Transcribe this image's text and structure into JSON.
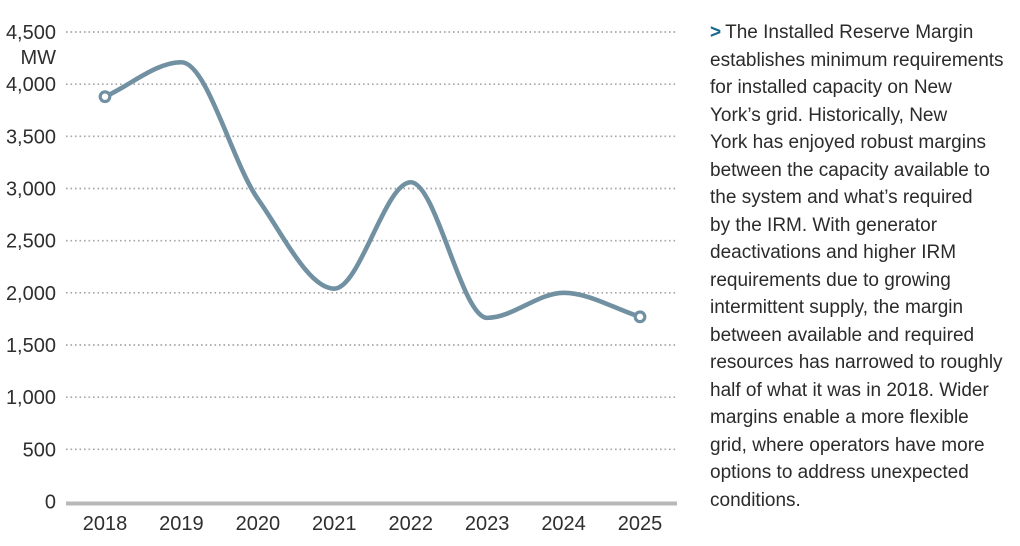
{
  "chart_data": {
    "type": "line",
    "title": "",
    "xlabel": "",
    "ylabel": "MW",
    "unit_label": "MW",
    "categories": [
      "2018",
      "2019",
      "2020",
      "2021",
      "2022",
      "2023",
      "2024",
      "2025"
    ],
    "series": [
      {
        "name": "Installed Reserve Margin (MW)",
        "values": [
          3880,
          4210,
          2900,
          2040,
          3060,
          1760,
          2000,
          1770
        ]
      }
    ],
    "ylim": [
      0,
      4500
    ],
    "y_ticks": [
      {
        "value": 4500,
        "label": "4,500"
      },
      {
        "value": 4000,
        "label": "4,000"
      },
      {
        "value": 3500,
        "label": "3,500"
      },
      {
        "value": 3000,
        "label": "3,000"
      },
      {
        "value": 2500,
        "label": "2,500"
      },
      {
        "value": 2000,
        "label": "2,000"
      },
      {
        "value": 1500,
        "label": "1,500"
      },
      {
        "value": 1000,
        "label": "1,000"
      },
      {
        "value": 500,
        "label": "500"
      },
      {
        "value": 0,
        "label": "0"
      }
    ],
    "grid": "horizontal-dotted",
    "legend": "none",
    "endpoint_markers": true
  },
  "note": {
    "bullet": ">",
    "lines": [
      "The Installed Reserve Margin",
      "establishes minimum requirements",
      "for installed capacity on New",
      "York’s grid. Historically, New",
      "York has enjoyed robust margins",
      "between the capacity available to",
      "the system and what’s required",
      "by the IRM. With generator",
      "deactivations and higher IRM",
      "requirements due to growing",
      "intermittent supply, the margin",
      "between available and required",
      "resources has narrowed to roughly",
      "half of what it was in 2018. Wider",
      "margins enable a more flexible",
      "grid, where operators have more",
      "options to address unexpected",
      "conditions."
    ]
  },
  "colors": {
    "line": "#7191a3",
    "grid": "#a7a7a7",
    "axis": "#b8b8b8",
    "chart_text": "#2e2e2e",
    "note_text": "#2b2b2b",
    "bullet": "#16688c"
  }
}
